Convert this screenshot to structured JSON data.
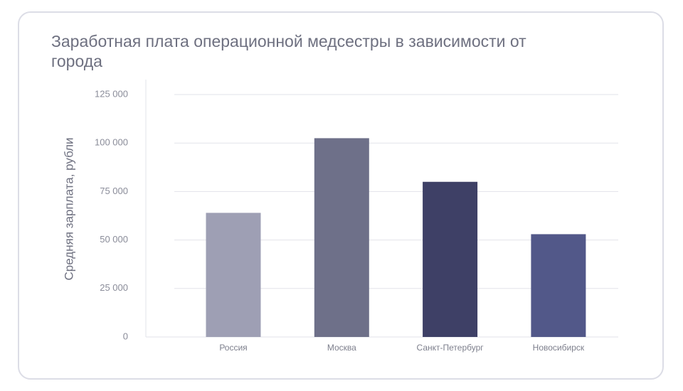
{
  "chart_data": {
    "type": "bar",
    "title": "Заработная плата операционной медсестры в зависимости от города",
    "xlabel": "",
    "ylabel": "Средняя зарплата, рубли",
    "categories": [
      "Россия",
      "Москва",
      "Санкт-Петербург",
      "Новосибирск"
    ],
    "values": [
      64000,
      102500,
      80000,
      53000
    ],
    "colors": [
      "#9e9fb4",
      "#6e7089",
      "#3e4066",
      "#525889"
    ],
    "ylim": [
      0,
      125000
    ],
    "yticks": [
      0,
      25000,
      50000,
      75000,
      100000,
      125000
    ],
    "ytick_labels": [
      "0",
      "25 000",
      "50 000",
      "75 000",
      "100 000",
      "125 000"
    ],
    "grid": true,
    "legend": "none"
  }
}
